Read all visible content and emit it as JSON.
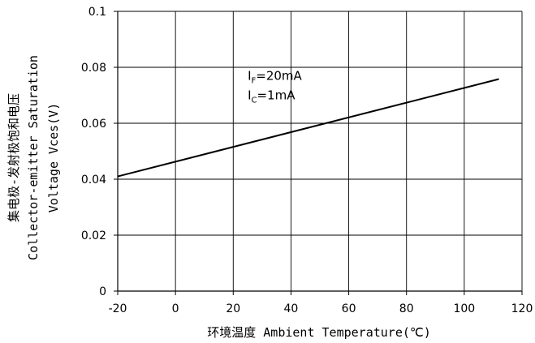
{
  "chart_data": {
    "type": "line",
    "title": "",
    "xlabel": "环境温度 Ambient Temperature(℃)",
    "ylabel_lines": [
      "集电极-发射极饱和电压",
      "Collector-emitter Saturation",
      "Voltage Vces(V)"
    ],
    "xlim": [
      -20,
      120
    ],
    "ylim": [
      0,
      0.1
    ],
    "x_ticks": [
      -20,
      0,
      20,
      40,
      60,
      80,
      100,
      120
    ],
    "x_tick_labels": [
      "-20",
      "0",
      "20",
      "40",
      "60",
      "80",
      "100",
      "120"
    ],
    "y_ticks": [
      0,
      0.02,
      0.04,
      0.06,
      0.08,
      0.1
    ],
    "y_tick_labels": [
      "0",
      "0.02",
      "0.04",
      "0.06",
      "0.08",
      "0.1"
    ],
    "grid": true,
    "series": [
      {
        "x": [
          -20,
          112
        ],
        "y": [
          0.041,
          0.0758
        ]
      }
    ],
    "annotations": [
      {
        "main": "I",
        "sub": "F",
        "rest": "=20mA",
        "x": 25,
        "y": 0.0755
      },
      {
        "main": "I",
        "sub": "C",
        "rest": "=1mA",
        "x": 25,
        "y": 0.0685
      }
    ],
    "line_color": "#000000",
    "grid_color": "#000000"
  }
}
